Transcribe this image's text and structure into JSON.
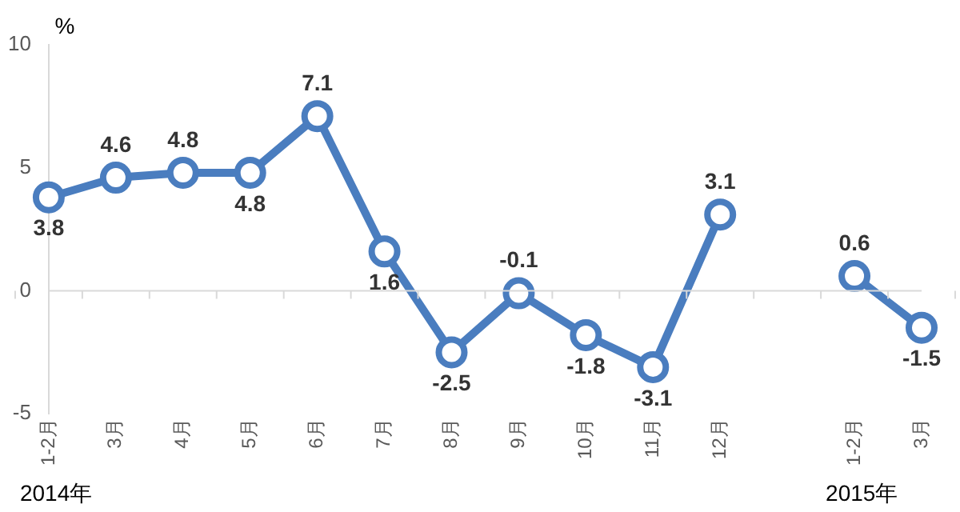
{
  "chart_data": {
    "type": "line",
    "ylabel": "%",
    "categories": [
      "1-2月",
      "3月",
      "4月",
      "5月",
      "6月",
      "7月",
      "8月",
      "9月",
      "10月",
      "11月",
      "12月",
      null,
      "1-2月",
      "3月"
    ],
    "series": [
      {
        "color": "#4a7dbf",
        "values": [
          3.8,
          4.6,
          4.8,
          4.8,
          7.1,
          1.6,
          -2.5,
          -0.1,
          -1.8,
          -3.1,
          3.1,
          null,
          0.6,
          -1.5
        ]
      }
    ],
    "ylim": [
      -5,
      10
    ],
    "yticks": [
      -5,
      0,
      5,
      10
    ],
    "grid": false,
    "legend": false,
    "marker": "circle",
    "line_style": "solid",
    "data_labels": true,
    "ref_lines": [
      {
        "axis": "y",
        "value": 0,
        "color": "#d9d9d9"
      }
    ],
    "annotations": [
      "2014年",
      "2015年"
    ]
  }
}
